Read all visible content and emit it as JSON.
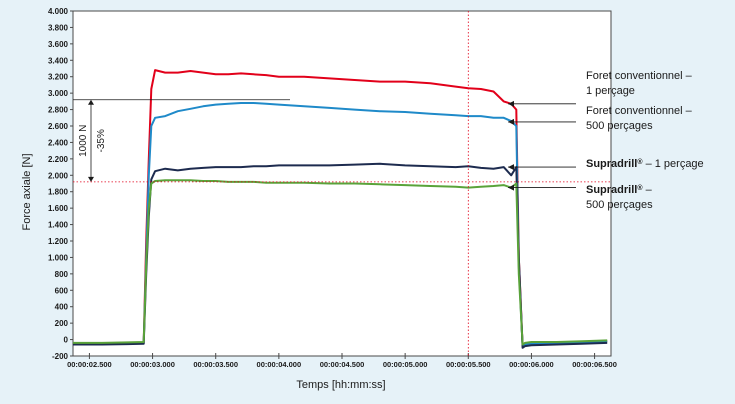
{
  "chart_data": {
    "type": "line",
    "xlabel": "Temps [hh:mm:ss]",
    "ylabel": "Force axiale [N]",
    "ylim": [
      -200,
      4000
    ],
    "xlim": [
      2.37,
      6.63
    ],
    "yticks": [
      {
        "v": -200,
        "label": "-200"
      },
      {
        "v": 0,
        "label": "0"
      },
      {
        "v": 200,
        "label": "200"
      },
      {
        "v": 400,
        "label": "400"
      },
      {
        "v": 600,
        "label": "600"
      },
      {
        "v": 800,
        "label": "800"
      },
      {
        "v": 1000,
        "label": "1.000"
      },
      {
        "v": 1200,
        "label": "1.200"
      },
      {
        "v": 1400,
        "label": "1.400"
      },
      {
        "v": 1600,
        "label": "1.600"
      },
      {
        "v": 1800,
        "label": "1.800"
      },
      {
        "v": 2000,
        "label": "2.000"
      },
      {
        "v": 2200,
        "label": "2.200"
      },
      {
        "v": 2400,
        "label": "2.400"
      },
      {
        "v": 2600,
        "label": "2.600"
      },
      {
        "v": 2800,
        "label": "2.800"
      },
      {
        "v": 3000,
        "label": "3.000"
      },
      {
        "v": 3200,
        "label": "3.200"
      },
      {
        "v": 3400,
        "label": "3.400"
      },
      {
        "v": 3600,
        "label": "3.600"
      },
      {
        "v": 3800,
        "label": "3.800"
      },
      {
        "v": 4000,
        "label": "4.000"
      }
    ],
    "xticks": [
      {
        "v": 2.5,
        "label": "00:00:02.500"
      },
      {
        "v": 3.0,
        "label": "00:00:03.000"
      },
      {
        "v": 3.5,
        "label": "00:00:03.500"
      },
      {
        "v": 4.0,
        "label": "00:00:04.000"
      },
      {
        "v": 4.5,
        "label": "00:00:04.500"
      },
      {
        "v": 5.0,
        "label": "00:00:05.000"
      },
      {
        "v": 5.5,
        "label": "00:00:05.500"
      },
      {
        "v": 6.0,
        "label": "00:00:06.000"
      },
      {
        "v": 6.5,
        "label": "00:00:06.500"
      }
    ],
    "grid": false,
    "series": [
      {
        "color": "#e2001a",
        "x": [
          2.37,
          2.6,
          2.8,
          2.93,
          2.95,
          2.97,
          2.99,
          3.02,
          3.1,
          3.2,
          3.3,
          3.4,
          3.5,
          3.6,
          3.7,
          3.8,
          3.9,
          4.0,
          4.2,
          4.4,
          4.6,
          4.8,
          5.0,
          5.2,
          5.4,
          5.5,
          5.6,
          5.7,
          5.78,
          5.84,
          5.88,
          5.9,
          5.93,
          5.95,
          6.0,
          6.2,
          6.4,
          6.6
        ],
        "y": [
          -50,
          -50,
          -45,
          -40,
          1200,
          2200,
          3050,
          3280,
          3250,
          3250,
          3270,
          3250,
          3230,
          3230,
          3240,
          3230,
          3220,
          3200,
          3200,
          3180,
          3160,
          3140,
          3140,
          3120,
          3080,
          3060,
          3050,
          3020,
          2900,
          2870,
          2800,
          1000,
          -80,
          -50,
          -40,
          -50,
          -40,
          -20
        ]
      },
      {
        "color": "#1f8ac9",
        "x": [
          2.37,
          2.6,
          2.8,
          2.93,
          2.95,
          2.97,
          2.99,
          3.02,
          3.1,
          3.2,
          3.3,
          3.4,
          3.5,
          3.6,
          3.7,
          3.8,
          3.9,
          4.0,
          4.2,
          4.4,
          4.6,
          4.8,
          5.0,
          5.2,
          5.4,
          5.5,
          5.6,
          5.7,
          5.78,
          5.84,
          5.88,
          5.9,
          5.93,
          5.95,
          6.0,
          6.2,
          6.4,
          6.6
        ],
        "y": [
          -50,
          -50,
          -45,
          -40,
          1000,
          2000,
          2600,
          2700,
          2720,
          2780,
          2810,
          2840,
          2860,
          2870,
          2880,
          2880,
          2870,
          2860,
          2840,
          2820,
          2800,
          2780,
          2770,
          2750,
          2730,
          2720,
          2720,
          2700,
          2700,
          2660,
          2600,
          900,
          -80,
          -60,
          -50,
          -50,
          -40,
          -20
        ]
      },
      {
        "color": "#1d2b4f",
        "x": [
          2.37,
          2.6,
          2.8,
          2.93,
          2.95,
          2.97,
          2.99,
          3.02,
          3.1,
          3.2,
          3.3,
          3.4,
          3.5,
          3.6,
          3.7,
          3.8,
          3.9,
          4.0,
          4.2,
          4.4,
          4.6,
          4.8,
          5.0,
          5.2,
          5.4,
          5.5,
          5.6,
          5.7,
          5.78,
          5.84,
          5.88,
          5.9,
          5.93,
          5.95,
          6.0,
          6.2,
          6.4,
          6.6
        ],
        "y": [
          -60,
          -60,
          -55,
          -50,
          800,
          1500,
          1950,
          2050,
          2080,
          2060,
          2080,
          2090,
          2100,
          2100,
          2100,
          2110,
          2110,
          2120,
          2120,
          2120,
          2130,
          2140,
          2120,
          2110,
          2100,
          2110,
          2090,
          2080,
          2100,
          2000,
          2100,
          1000,
          -100,
          -80,
          -70,
          -60,
          -50,
          -40
        ]
      },
      {
        "color": "#5aa33a",
        "x": [
          2.37,
          2.6,
          2.8,
          2.93,
          2.95,
          2.97,
          2.99,
          3.02,
          3.1,
          3.2,
          3.3,
          3.4,
          3.5,
          3.6,
          3.7,
          3.8,
          3.9,
          4.0,
          4.2,
          4.4,
          4.6,
          4.8,
          5.0,
          5.2,
          5.4,
          5.5,
          5.6,
          5.7,
          5.78,
          5.84,
          5.88,
          5.9,
          5.93,
          5.95,
          6.0,
          6.2,
          6.4,
          6.6
        ],
        "y": [
          -40,
          -40,
          -35,
          -30,
          900,
          1600,
          1900,
          1930,
          1940,
          1940,
          1940,
          1930,
          1930,
          1920,
          1920,
          1920,
          1910,
          1910,
          1910,
          1900,
          1900,
          1890,
          1880,
          1870,
          1860,
          1850,
          1860,
          1870,
          1880,
          1850,
          1900,
          800,
          -60,
          -40,
          -30,
          -30,
          -20,
          -10
        ]
      }
    ],
    "annotations": {
      "diff_label": "1000 N",
      "pct_label": "-35%",
      "ref_dash_y": 1920,
      "ref_dash_x": 5.5,
      "bracket_top": 2920,
      "bracket_bottom": 1920
    },
    "legend": [
      {
        "line1_bold": "",
        "line1": "Foret conventionnel –",
        "line2": "1 perçage",
        "arrow_y": 2870
      },
      {
        "line1_bold": "",
        "line1": "Foret conventionnel –",
        "line2": "500 perçages",
        "arrow_y": 2650
      },
      {
        "line1_bold": "Supradrill",
        "line1": " – 1 perçage",
        "line2": "",
        "arrow_y": 2100
      },
      {
        "line1_bold": "Supradrill",
        "line1": " –",
        "line2": "500 perçages",
        "arrow_y": 1850
      }
    ],
    "registered_mark": "®"
  }
}
